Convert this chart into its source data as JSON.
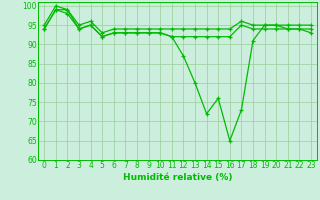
{
  "x": [
    0,
    1,
    2,
    3,
    4,
    5,
    6,
    7,
    8,
    9,
    10,
    11,
    12,
    13,
    14,
    15,
    16,
    17,
    18,
    19,
    20,
    21,
    22,
    23
  ],
  "line1": [
    94,
    99,
    99,
    94,
    95,
    92,
    93,
    93,
    93,
    93,
    93,
    92,
    87,
    80,
    72,
    76,
    65,
    73,
    91,
    95,
    95,
    94,
    94,
    93
  ],
  "line2": [
    94,
    99,
    98,
    94,
    95,
    92,
    93,
    93,
    93,
    93,
    93,
    92,
    92,
    92,
    92,
    92,
    92,
    95,
    94,
    94,
    94,
    94,
    94,
    94
  ],
  "line3": [
    95,
    100,
    99,
    95,
    96,
    93,
    94,
    94,
    94,
    94,
    94,
    94,
    94,
    94,
    94,
    94,
    94,
    96,
    95,
    95,
    95,
    95,
    95,
    95
  ],
  "line_color": "#00bb00",
  "background_color": "#cceedd",
  "grid_color": "#99cc99",
  "xlabel": "Humidité relative (%)",
  "ylim": [
    60,
    101
  ],
  "yticks": [
    60,
    65,
    70,
    75,
    80,
    85,
    90,
    95,
    100
  ],
  "xlabel_fontsize": 6.5,
  "tick_fontsize": 5.5,
  "marker": "+"
}
